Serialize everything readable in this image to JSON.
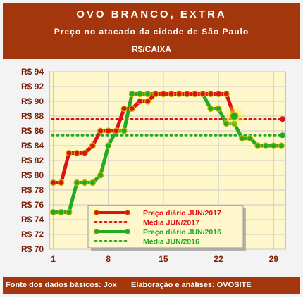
{
  "header": {
    "title": "OVO BRANCO, EXTRA",
    "subtitle": "Preço no atacado da cidade de São Paulo",
    "unit": "R$/CAIXA"
  },
  "footer": {
    "source": "Fonte dos dados básicos: Jox",
    "credit": "Elaboração e análises: OVOSITE"
  },
  "colors": {
    "header_bg": "#a4360e",
    "plot_bg": "#fff7cc",
    "series_2017": "#dd1111",
    "series_2016": "#22aa22",
    "grid": "#c8c8c8"
  },
  "chart_data": {
    "type": "line",
    "x": [
      1,
      2,
      3,
      4,
      5,
      6,
      7,
      8,
      9,
      10,
      11,
      12,
      13,
      14,
      15,
      16,
      17,
      18,
      19,
      20,
      21,
      22,
      23,
      24,
      25,
      26,
      27,
      28,
      29,
      30
    ],
    "xticks": [
      1,
      8,
      15,
      22,
      29
    ],
    "xlim": [
      0.5,
      30.5
    ],
    "ylim": [
      70,
      94
    ],
    "yticks": [
      70,
      72,
      74,
      76,
      78,
      80,
      82,
      84,
      86,
      88,
      90,
      92,
      94
    ],
    "ytick_prefix": "R$ ",
    "grid": true,
    "legend_position": "bottom-center",
    "series": [
      {
        "name": "Preço diário JUN/2017",
        "style": "line-markers",
        "color": "#dd1111",
        "x": [
          1,
          2,
          3,
          4,
          5,
          6,
          7,
          8,
          9,
          10,
          11,
          12,
          13,
          14,
          15,
          16,
          17,
          18,
          19,
          20,
          21,
          22,
          23,
          24
        ],
        "values": [
          79,
          79,
          83,
          83,
          83,
          84,
          86,
          86,
          86,
          89,
          89,
          90,
          90,
          91,
          91,
          91,
          91,
          91,
          91,
          91,
          91,
          91,
          91,
          88
        ]
      },
      {
        "name": "Média JUN/2017",
        "style": "dotted",
        "color": "#dd1111",
        "value": 87.6
      },
      {
        "name": "Preço diário JUN/2016",
        "style": "line-markers",
        "color": "#22aa22",
        "x": [
          1,
          2,
          3,
          4,
          5,
          6,
          7,
          8,
          9,
          10,
          11,
          12,
          13,
          14,
          15,
          16,
          17,
          18,
          19,
          20,
          21,
          22,
          23,
          24,
          25,
          26,
          27,
          28,
          29,
          30
        ],
        "values": [
          75,
          75,
          75,
          79,
          79,
          79,
          80,
          84,
          86,
          86,
          91,
          91,
          91,
          91,
          91,
          91,
          91,
          91,
          91,
          91,
          89,
          89,
          87,
          87,
          85,
          85,
          84,
          84,
          84,
          84
        ]
      },
      {
        "name": "Média JUN/2016",
        "style": "dotted",
        "color": "#22aa22",
        "value": 85.4
      }
    ]
  }
}
